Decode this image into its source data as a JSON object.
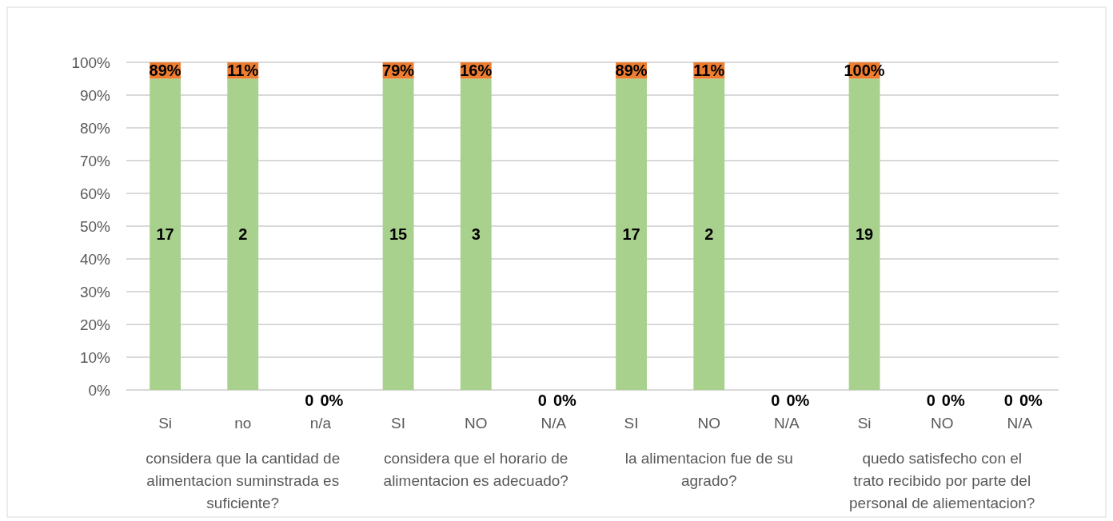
{
  "chart_data": {
    "type": "bar",
    "stacked": true,
    "categories": [
      "Si",
      "no",
      "n/a",
      "SI",
      "NO",
      "N/A",
      "SI",
      "NO",
      "N/A",
      "Si",
      "NO",
      "N/A"
    ],
    "series": [
      {
        "color": "#a9d18e",
        "values": [
          95,
          95,
          0,
          95,
          95,
          0,
          95,
          95,
          0,
          95,
          0,
          0
        ]
      },
      {
        "color": "#ed7d31",
        "values": [
          5,
          5,
          0,
          5,
          5,
          0,
          5,
          5,
          0,
          5,
          0,
          0
        ]
      }
    ],
    "ylim": [
      0,
      100
    ],
    "yticks": [
      {
        "value": 0,
        "label": "0%"
      },
      {
        "value": 10,
        "label": "10%"
      },
      {
        "value": 20,
        "label": "20%"
      },
      {
        "value": 30,
        "label": "30%"
      },
      {
        "value": 40,
        "label": "40%"
      },
      {
        "value": 50,
        "label": "50%"
      },
      {
        "value": 60,
        "label": "60%"
      },
      {
        "value": 70,
        "label": "70%"
      },
      {
        "value": 80,
        "label": "80%"
      },
      {
        "value": 90,
        "label": "90%"
      },
      {
        "value": 100,
        "label": "100%"
      }
    ],
    "grid": "y",
    "annotations": [
      "considera que la cantidad de alimentacion suminstrada es suficiente?",
      "considera que el horario de alimentacion es adecuado?",
      "la alimentacion fue de su agrado?",
      "quedo satisfecho con el trato recibido por parte del personal de aliementacion?",
      "17",
      "89%",
      "2",
      "11%",
      "0",
      "0%",
      "15",
      "79%",
      "3",
      "16%",
      "0",
      "0%",
      "17",
      "89%",
      "2",
      "11%",
      "0",
      "0%",
      "19",
      "100%",
      "0",
      "0%",
      "0",
      "0%"
    ]
  }
}
